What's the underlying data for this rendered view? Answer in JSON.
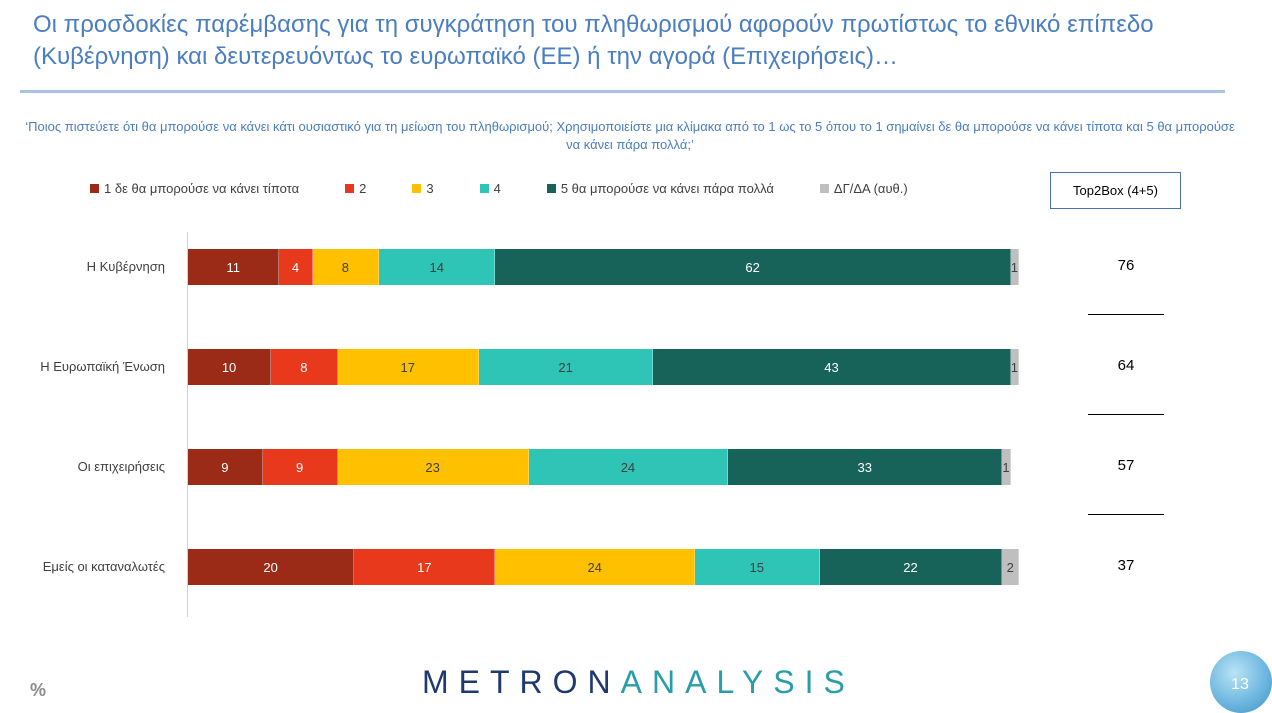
{
  "slide": {
    "title": "Οι προσδοκίες παρέμβασης για τη συγκράτηση του πληθωρισμού αφορούν πρωτίστως το εθνικό επίπεδο (Κυβέρνηση) και δευτερευόντως το ευρωπαϊκό (ΕΕ) ή την αγορά (Επιχειρήσεις)…",
    "question": "‘Ποιος πιστεύετε ότι θα μπορούσε να κάνει κάτι ουσιαστικό για τη μείωση του πληθωρισμού; Χρησιμοποιείστε μια κλίμακα από το 1 ως το 5 όπου το 1 σημαίνει δε θα μπορούσε να κάνει τίποτα και 5 θα μπορούσε να κάνει πάρα πολλά;’",
    "top2box_header": "Top2Box (4+5)",
    "unit_icon": "%",
    "brand_part1": "METRON",
    "brand_part2": "ANALYSIS",
    "page_number": "13"
  },
  "chart_data": {
    "type": "bar",
    "orientation": "horizontal",
    "stacked": true,
    "categories": [
      "Η Κυβέρνηση",
      "Η Ευρωπαϊκή Ένωση",
      "Οι επιχειρήσεις",
      "Εμείς οι καταναλωτές"
    ],
    "series": [
      {
        "name": "1  δε θα μπορούσε να κάνει τίποτα",
        "color": "#9b2a16",
        "text_color": "#ffffff",
        "values": [
          11,
          10,
          9,
          20
        ]
      },
      {
        "name": "2",
        "color": "#e8391c",
        "text_color": "#ffffff",
        "values": [
          4,
          8,
          9,
          17
        ]
      },
      {
        "name": "3",
        "color": "#ffc000",
        "text_color": "#404040",
        "values": [
          8,
          17,
          23,
          24
        ]
      },
      {
        "name": "4",
        "color": "#2ec4b6",
        "text_color": "#404040",
        "values": [
          14,
          21,
          24,
          15
        ]
      },
      {
        "name": "5 θα μπορούσε να κάνει πάρα πολλά",
        "color": "#17635a",
        "text_color": "#ffffff",
        "values": [
          62,
          43,
          33,
          22
        ]
      },
      {
        "name": "ΔΓ/ΔΑ (αυθ.)",
        "color": "#bfbfbf",
        "text_color": "#404040",
        "values": [
          1,
          1,
          1,
          2
        ]
      }
    ],
    "top2box": [
      76,
      64,
      57,
      37
    ],
    "xlim": [
      0,
      100
    ],
    "legend_position": "top",
    "grid": false
  }
}
